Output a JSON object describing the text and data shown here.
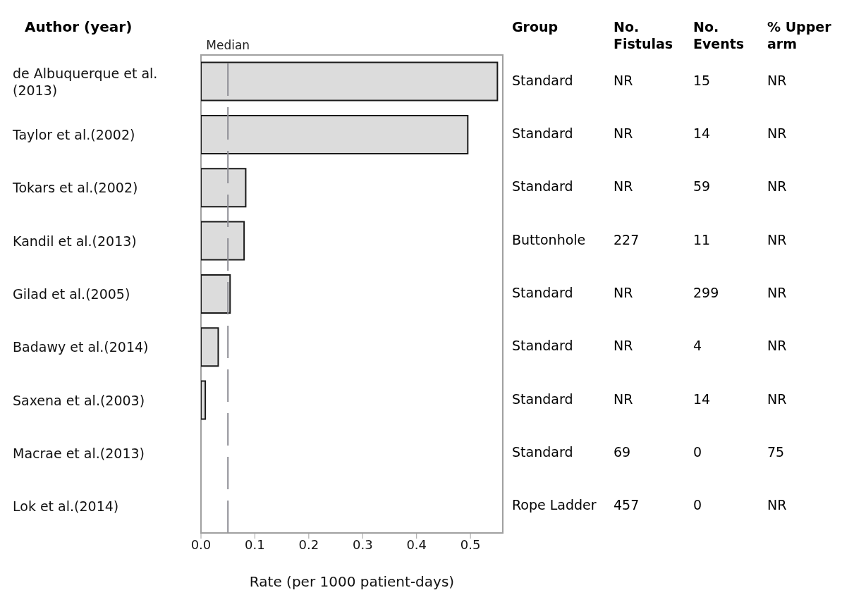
{
  "chart_data": {
    "type": "bar",
    "orientation": "horizontal",
    "ylabel": "Author (year)",
    "xlabel": "Rate (per 1000 patient-days)",
    "categories": [
      "de Albuquerque et al. (2013)",
      "Taylor et al.(2002)",
      "Tokars et al.(2002)",
      "Kandil et al.(2013)",
      "Gilad et al.(2005)",
      "Badawy et al.(2014)",
      "Saxena et al.(2003)",
      "Macrae et al.(2013)",
      "Lok et al.(2014)"
    ],
    "values": [
      0.55,
      0.495,
      0.083,
      0.08,
      0.054,
      0.032,
      0.008,
      0,
      0
    ],
    "color": "#dcdcdc",
    "xlim": [
      0,
      0.56
    ],
    "xticks": [
      {
        "value": 0,
        "label": "0.0"
      },
      0.1,
      0.2,
      0.3,
      0.4,
      0.5
    ],
    "ref_lines": [
      {
        "axis": "x",
        "value": 0.05,
        "label": "Median",
        "color": "#8c8c94",
        "line_style": "dashed"
      }
    ],
    "annotations": [
      "Group",
      "No. Fistulas",
      "No. Events",
      "% Upper arm",
      "Standard",
      "NR",
      "15",
      "NR",
      "Standard",
      "NR",
      "14",
      "NR",
      "Standard",
      "NR",
      "59",
      "NR",
      "Buttonhole",
      "227",
      "11",
      "NR",
      "Standard",
      "NR",
      "299",
      "NR",
      "Standard",
      "NR",
      "4",
      "NR",
      "Standard",
      "NR",
      "14",
      "NR",
      "Standard",
      "69",
      "0",
      "75",
      "Rope Ladder",
      "457",
      "0",
      "NR"
    ]
  }
}
